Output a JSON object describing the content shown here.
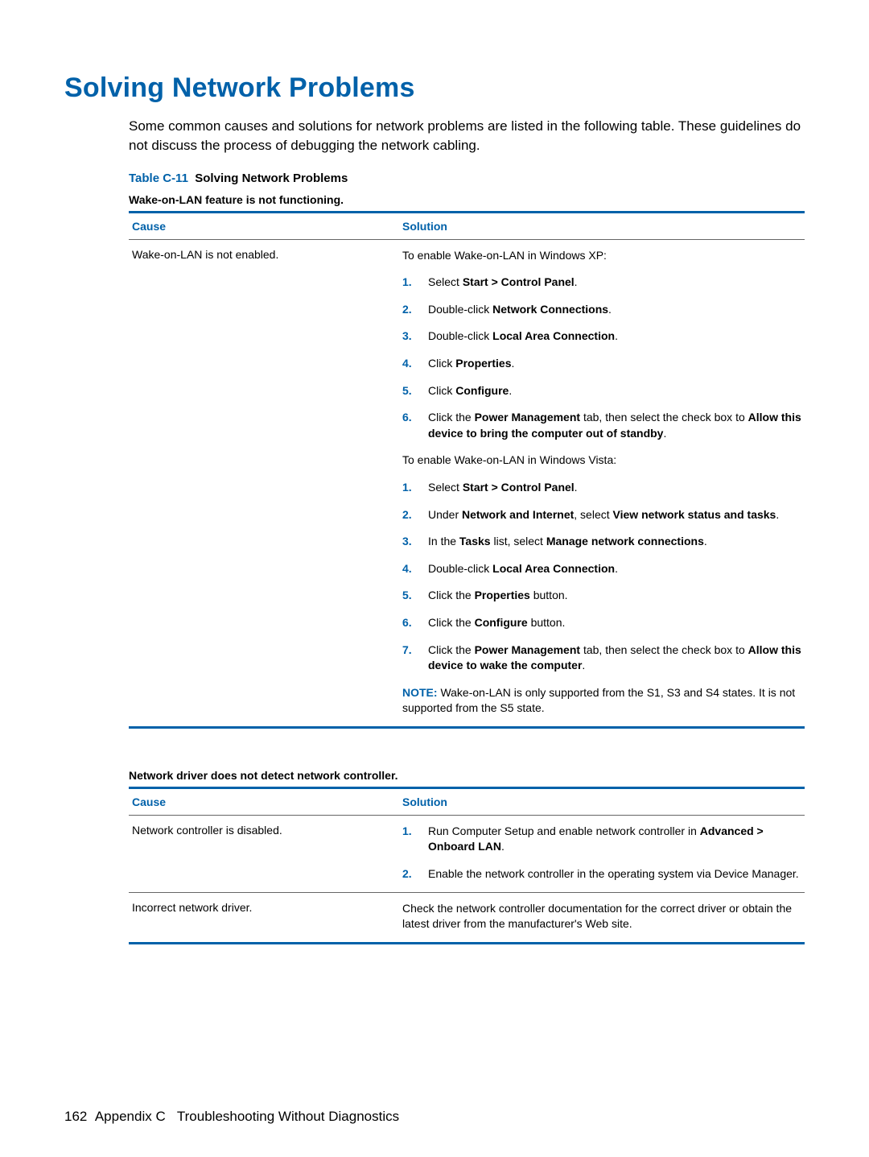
{
  "section_title": "Solving Network Problems",
  "intro": "Some common causes and solutions for network problems are listed in the following table. These guidelines do not discuss the process of debugging the network cabling.",
  "table_caption_num": "Table C-11",
  "table_caption_name": "Solving Network Problems",
  "headers": {
    "cause": "Cause",
    "solution": "Solution"
  },
  "colors": {
    "accent": "#0061a9",
    "text": "#000000",
    "rule": "#666666",
    "background": "#ffffff"
  },
  "problem1": {
    "title": "Wake-on-LAN feature is not functioning.",
    "cause": "Wake-on-LAN is not enabled.",
    "xp_intro": "To enable Wake-on-LAN in Windows XP:",
    "xp_steps": {
      "s1_pre": "Select ",
      "s1_b": "Start > Control Panel",
      "s1_post": ".",
      "s2_pre": "Double-click ",
      "s2_b": "Network Connections",
      "s2_post": ".",
      "s3_pre": "Double-click ",
      "s3_b": "Local Area Connection",
      "s3_post": ".",
      "s4_pre": "Click ",
      "s4_b": "Properties",
      "s4_post": ".",
      "s5_pre": "Click ",
      "s5_b": "Configure",
      "s5_post": ".",
      "s6_pre": "Click the ",
      "s6_b1": "Power Management",
      "s6_mid": " tab, then select the check box to ",
      "s6_b2": "Allow this device to bring the computer out of standby",
      "s6_post": "."
    },
    "vista_intro": "To enable Wake-on-LAN in Windows Vista:",
    "vista_steps": {
      "s1_pre": "Select ",
      "s1_b": "Start > Control Panel",
      "s1_post": ".",
      "s2_pre": "Under ",
      "s2_b1": "Network and Internet",
      "s2_mid": ", select ",
      "s2_b2": "View network status and tasks",
      "s2_post": ".",
      "s3_pre": "In the ",
      "s3_b1": "Tasks",
      "s3_mid": " list, select ",
      "s3_b2": "Manage network connections",
      "s3_post": ".",
      "s4_pre": "Double-click ",
      "s4_b": "Local Area Connection",
      "s4_post": ".",
      "s5_pre": "Click the ",
      "s5_b": "Properties",
      "s5_post": " button.",
      "s6_pre": "Click the ",
      "s6_b": "Configure",
      "s6_post": " button.",
      "s7_pre": "Click the ",
      "s7_b1": "Power Management",
      "s7_mid": " tab, then select the check box to ",
      "s7_b2": "Allow this device to wake the computer",
      "s7_post": "."
    },
    "note_label": "NOTE:",
    "note_text": "   Wake-on-LAN is only supported from the S1, S3 and S4 states. It is not supported from the S5 state."
  },
  "problem2": {
    "title": "Network driver does not detect network controller.",
    "row1_cause": "Network controller is disabled.",
    "row1_steps": {
      "s1_pre": "Run Computer Setup and enable network controller in ",
      "s1_b": "Advanced > Onboard LAN",
      "s1_post": ".",
      "s2": "Enable the network controller in the operating system via Device Manager."
    },
    "row2_cause": "Incorrect network driver.",
    "row2_solution": "Check the network controller documentation for the correct driver or obtain the latest driver from the manufacturer's Web site."
  },
  "footer": {
    "page_number": "162",
    "appendix": "Appendix C",
    "chapter": "Troubleshooting Without Diagnostics"
  }
}
